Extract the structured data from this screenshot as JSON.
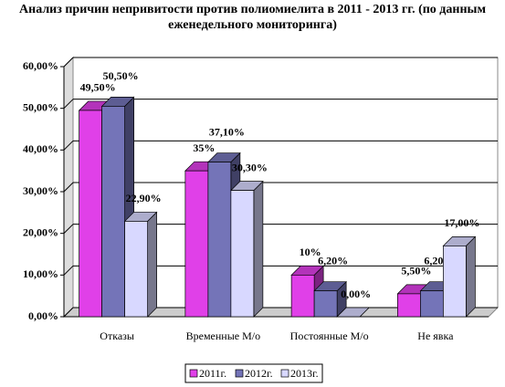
{
  "chart_data": {
    "type": "bar3d",
    "title": "Анализ причин непривитости против полиомиелита в 2011 - 2013 гг. (по данным еженедельного мониторинга)",
    "categories": [
      "Отказы",
      "Временные М/о",
      "Постоянные  М/о",
      "Не явка"
    ],
    "series": [
      {
        "name": "2011г.",
        "color": "#e040e8",
        "values": [
          49.5,
          35,
          10,
          5.5
        ],
        "value_labels": [
          "49,50%",
          "35%",
          "10%",
          "5,50%"
        ]
      },
      {
        "name": "2012г.",
        "color": "#7474b8",
        "values": [
          50.5,
          37.1,
          6.2,
          6.2
        ],
        "value_labels": [
          "50,50%",
          "37,10%",
          "6,20%",
          "6,20%"
        ]
      },
      {
        "name": "2013г.",
        "color": "#d8d8ff",
        "values": [
          22.9,
          30.3,
          0,
          17
        ],
        "value_labels": [
          "22,90%",
          "30,30%",
          "0,00%",
          "17,00%"
        ]
      }
    ],
    "ylim": [
      0,
      60
    ],
    "yticks": [
      {
        "value": 0,
        "label": "0,00%"
      },
      {
        "value": 10,
        "label": "10,00%"
      },
      {
        "value": 20,
        "label": "20,00%"
      },
      {
        "value": 30,
        "label": "30,00%"
      },
      {
        "value": 40,
        "label": "40,00%"
      },
      {
        "value": 50,
        "label": "50,00%"
      },
      {
        "value": 60,
        "label": "60,00%"
      }
    ],
    "grid": true
  }
}
